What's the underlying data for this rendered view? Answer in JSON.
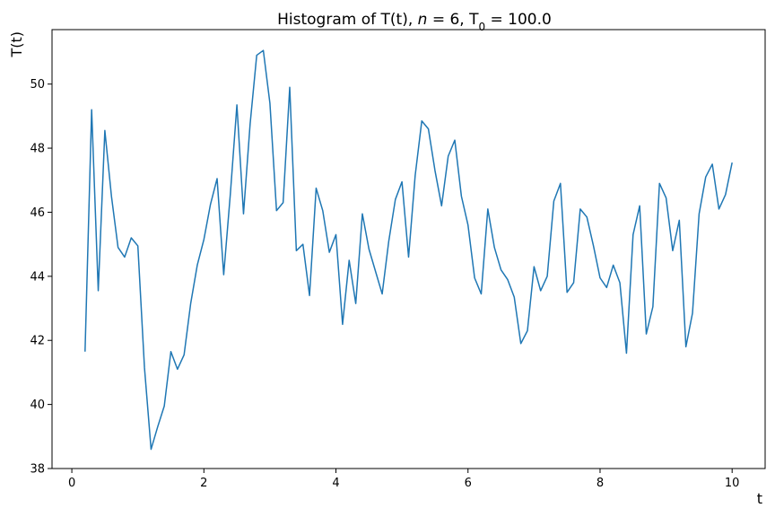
{
  "chart_data": {
    "type": "line",
    "title": {
      "prefix": "Histogram of T(t), ",
      "italic_var": "n",
      "n_part": " = 6, T",
      "subscript": "0",
      "suffix": " = 100.0"
    },
    "xlabel": "t",
    "ylabel": "T(t)",
    "xlim": [
      -0.3,
      10.5
    ],
    "ylim": [
      38,
      51.7
    ],
    "xticks": [
      0,
      2,
      4,
      6,
      8,
      10
    ],
    "yticks": [
      38,
      40,
      42,
      44,
      46,
      48,
      50
    ],
    "grid": false,
    "line_color": "#1f77b4",
    "series": [
      {
        "x": [
          0.2,
          0.3,
          0.4,
          0.5,
          0.6,
          0.7,
          0.8,
          0.9,
          1.0,
          1.1,
          1.2,
          1.3,
          1.4,
          1.5,
          1.6,
          1.7,
          1.8,
          1.9,
          2.0,
          2.1,
          2.2,
          2.3,
          2.4,
          2.5,
          2.6,
          2.7,
          2.8,
          2.9,
          3.0,
          3.1,
          3.2,
          3.3,
          3.4,
          3.5,
          3.6,
          3.7,
          3.8,
          3.9,
          4.0,
          4.1,
          4.2,
          4.3,
          4.4,
          4.5,
          4.6,
          4.7,
          4.8,
          4.9,
          5.0,
          5.1,
          5.2,
          5.3,
          5.4,
          5.5,
          5.6,
          5.7,
          5.8,
          5.9,
          6.0,
          6.1,
          6.2,
          6.3,
          6.4,
          6.5,
          6.6,
          6.7,
          6.8,
          6.9,
          7.0,
          7.1,
          7.2,
          7.3,
          7.4,
          7.5,
          7.6,
          7.7,
          7.8,
          7.9,
          8.0,
          8.1,
          8.2,
          8.3,
          8.4,
          8.5,
          8.6,
          8.7,
          8.8,
          8.9,
          9.0,
          9.1,
          9.2,
          9.3,
          9.4,
          9.5,
          9.6,
          9.7,
          9.8,
          9.9,
          10.0
        ],
        "y": [
          41.65,
          49.2,
          43.55,
          48.55,
          46.5,
          44.9,
          44.6,
          45.2,
          44.95,
          41.15,
          38.6,
          39.3,
          39.95,
          41.65,
          41.1,
          41.55,
          43.15,
          44.35,
          45.15,
          46.25,
          47.05,
          44.05,
          46.55,
          49.35,
          45.95,
          48.75,
          50.9,
          51.05,
          49.4,
          46.05,
          46.3,
          49.9,
          44.8,
          45.0,
          43.4,
          46.75,
          46.05,
          44.75,
          45.3,
          42.5,
          44.5,
          43.15,
          45.95,
          44.85,
          44.15,
          43.45,
          45.1,
          46.4,
          46.95,
          44.6,
          47.15,
          48.85,
          48.6,
          47.3,
          46.2,
          47.75,
          48.25,
          46.5,
          45.6,
          43.95,
          43.45,
          46.1,
          44.9,
          44.2,
          43.9,
          43.35,
          41.9,
          42.3,
          44.3,
          43.55,
          44.0,
          46.35,
          46.9,
          43.5,
          43.8,
          46.1,
          45.85,
          44.95,
          43.95,
          43.65,
          44.35,
          43.8,
          41.6,
          45.3,
          46.2,
          42.2,
          43.05,
          46.9,
          46.45,
          44.8,
          45.75,
          41.8,
          42.85,
          45.95,
          47.1,
          47.5,
          46.1,
          46.55,
          47.55
        ]
      }
    ]
  }
}
